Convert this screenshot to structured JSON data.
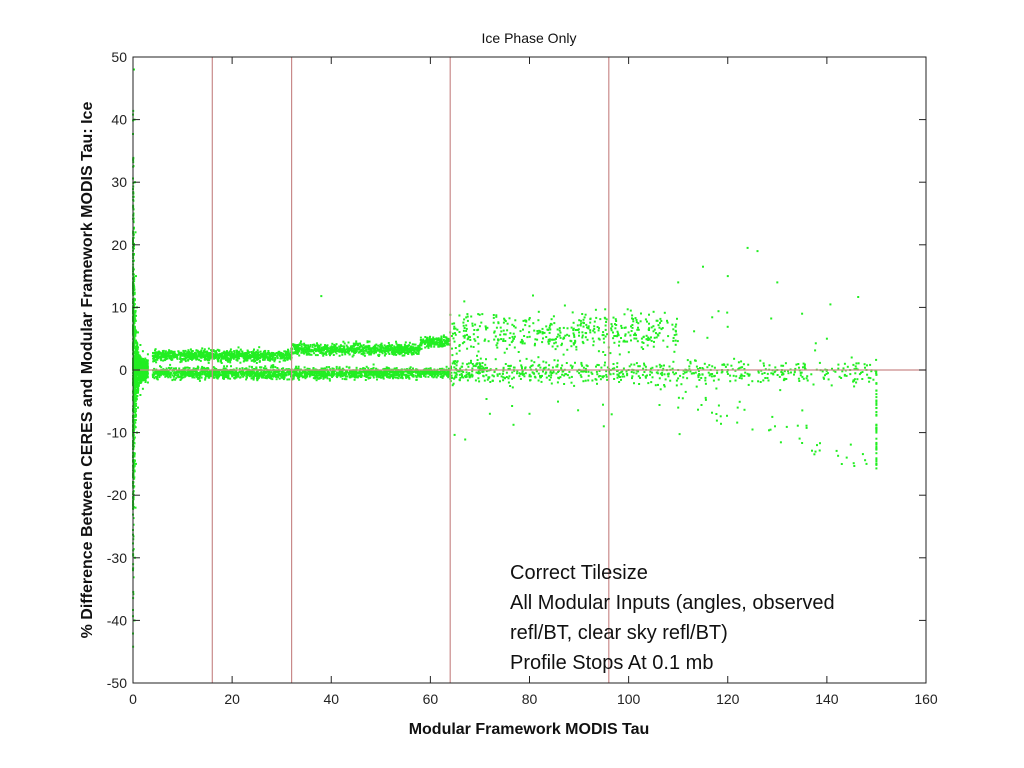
{
  "chart_data": {
    "type": "scatter",
    "title": "Ice Phase Only",
    "xlabel": "Modular Framework MODIS Tau",
    "ylabel": "% Difference Between CERES and Modular Framework MODIS Tau: Ice",
    "xlim": [
      0,
      160
    ],
    "ylim": [
      -50,
      50
    ],
    "xticks": [
      0,
      20,
      40,
      60,
      80,
      100,
      120,
      140,
      160
    ],
    "yticks": [
      -50,
      -40,
      -30,
      -20,
      -10,
      0,
      10,
      20,
      30,
      40,
      50
    ],
    "grid": false,
    "reference_lines": {
      "vertical_x": [
        16,
        32,
        64,
        96
      ],
      "horizontal_y": [
        0
      ],
      "color": "#c98a8a"
    },
    "marker_color": "#22ee22",
    "series": [
      {
        "points_sample": [
          [
            0.2,
            48
          ],
          [
            0.3,
            40
          ],
          [
            0.4,
            30
          ],
          [
            0.5,
            22
          ],
          [
            0.6,
            15
          ],
          [
            0.8,
            10
          ],
          [
            1.0,
            6
          ],
          [
            1.5,
            4
          ],
          [
            2,
            3
          ],
          [
            3,
            2.5
          ],
          [
            5,
            2
          ],
          [
            0.3,
            -40
          ],
          [
            0.4,
            -30
          ],
          [
            0.5,
            -22
          ],
          [
            0.6,
            -15
          ],
          [
            0.8,
            -10
          ],
          [
            1.0,
            -6
          ],
          [
            1.5,
            -4
          ],
          [
            2,
            -3
          ],
          [
            3,
            -2
          ],
          [
            5,
            -1.5
          ],
          [
            10,
            2.5
          ],
          [
            15,
            2.5
          ],
          [
            20,
            2.5
          ],
          [
            25,
            2.3
          ],
          [
            30,
            2.5
          ],
          [
            35,
            3.5
          ],
          [
            40,
            3.5
          ],
          [
            50,
            3.5
          ],
          [
            60,
            4.5
          ],
          [
            64,
            6
          ],
          [
            10,
            -0.5
          ],
          [
            20,
            -0.5
          ],
          [
            30,
            -0.5
          ],
          [
            40,
            -0.6
          ],
          [
            50,
            -0.5
          ],
          [
            60,
            -0.6
          ],
          [
            64,
            0
          ],
          [
            38,
            11.8
          ],
          [
            70,
            7
          ],
          [
            75,
            8
          ],
          [
            80,
            7
          ],
          [
            85,
            7.5
          ],
          [
            90,
            6
          ],
          [
            95,
            5
          ],
          [
            100,
            6
          ],
          [
            105,
            7
          ],
          [
            70,
            -0.5
          ],
          [
            80,
            -1
          ],
          [
            90,
            -0.5
          ],
          [
            100,
            0
          ],
          [
            110,
            0
          ],
          [
            120,
            0
          ],
          [
            130,
            0
          ],
          [
            140,
            0
          ],
          [
            148,
            0
          ],
          [
            110,
            14
          ],
          [
            115,
            16.5
          ],
          [
            120,
            15
          ],
          [
            124,
            19.5
          ],
          [
            126,
            19
          ],
          [
            130,
            14
          ],
          [
            135,
            9
          ],
          [
            140,
            5
          ],
          [
            145,
            2
          ],
          [
            72,
            -7
          ],
          [
            80,
            -7
          ],
          [
            95,
            -9
          ],
          [
            110,
            -6
          ],
          [
            122,
            -6
          ],
          [
            125,
            -9.5
          ],
          [
            138,
            -12
          ],
          [
            144,
            -14
          ],
          [
            148,
            -15
          ],
          [
            150,
            -15
          ],
          [
            150,
            -10
          ],
          [
            150,
            -5
          ]
        ]
      }
    ],
    "annotations": [
      "Correct Tilesize",
      "All Modular Inputs (angles, observed",
      "refl/BT, clear sky refl/BT)",
      "Profile Stops At 0.1 mb"
    ]
  }
}
